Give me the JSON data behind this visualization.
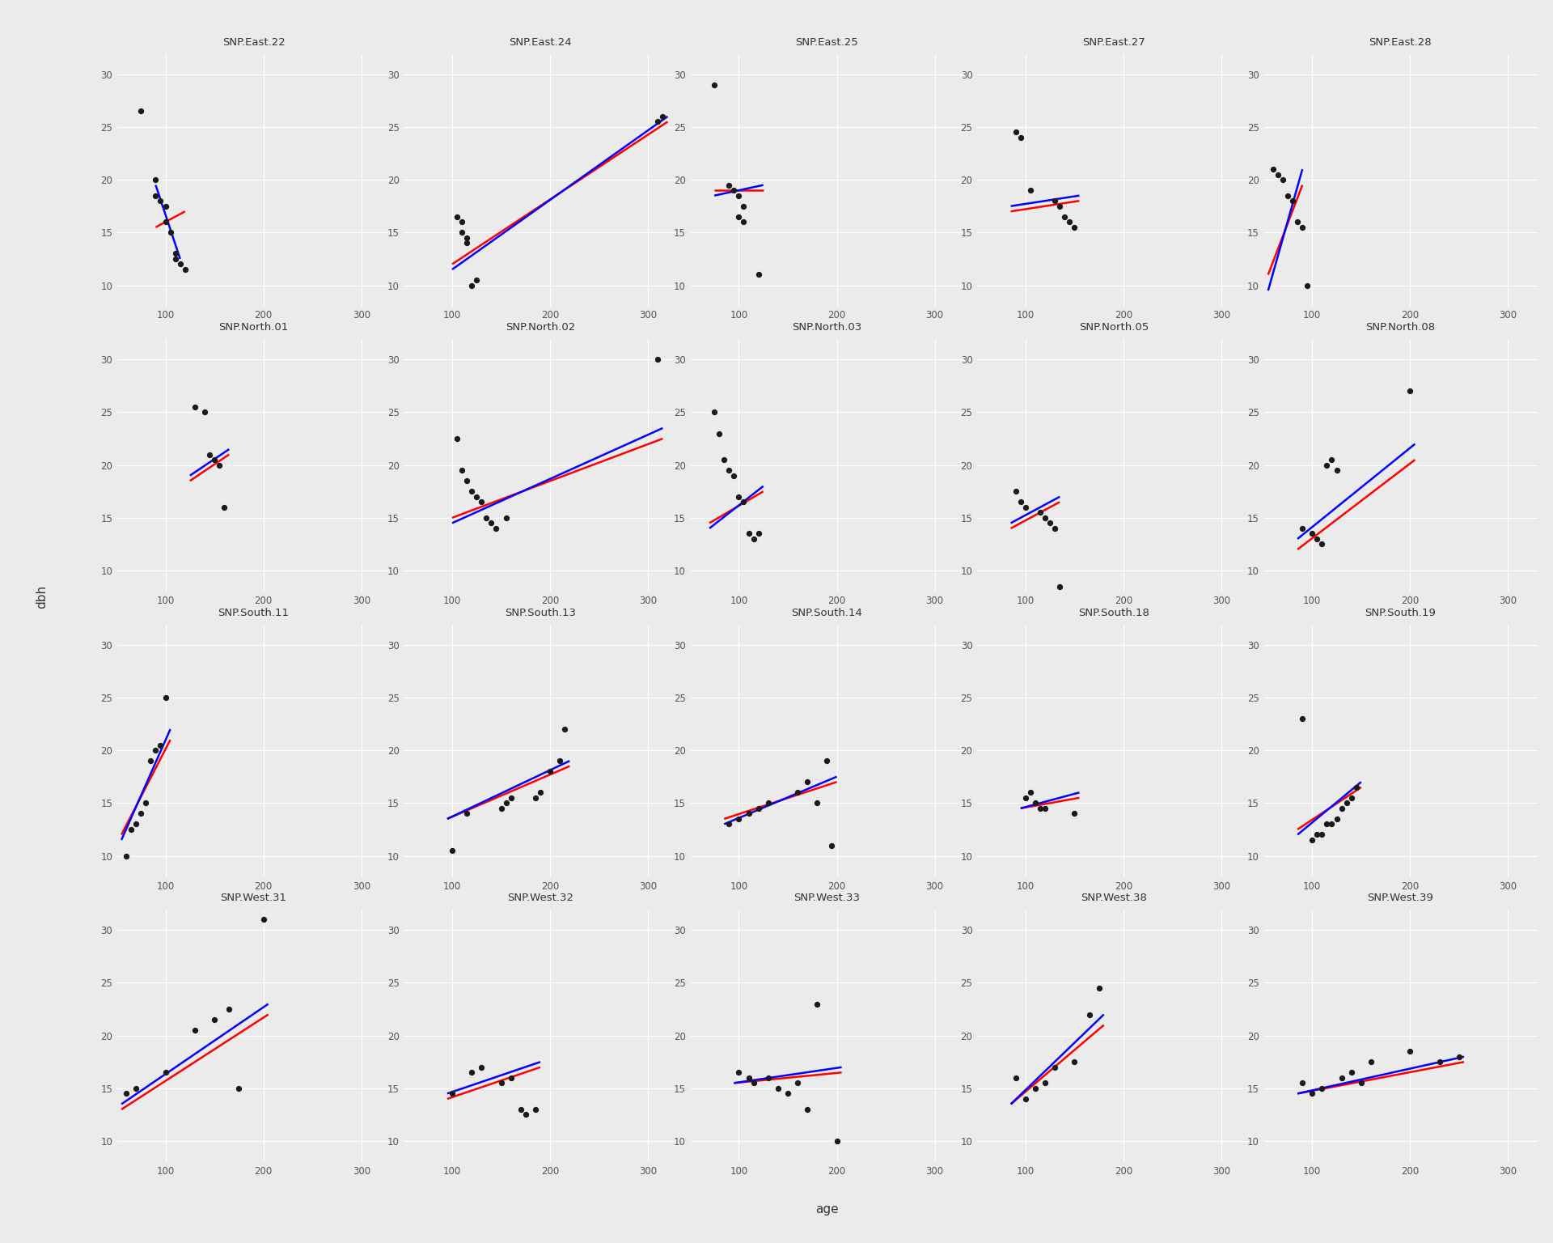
{
  "panels": [
    {
      "title": "SNP.East.22",
      "points": [
        [
          75,
          26.5
        ],
        [
          90,
          20.0
        ],
        [
          90,
          18.5
        ],
        [
          95,
          18.0
        ],
        [
          100,
          17.5
        ],
        [
          100,
          16.0
        ],
        [
          105,
          15.0
        ],
        [
          110,
          13.0
        ],
        [
          110,
          12.5
        ],
        [
          115,
          12.0
        ],
        [
          120,
          11.5
        ]
      ],
      "blue_line": [
        [
          90,
          19.5
        ],
        [
          115,
          12.5
        ]
      ],
      "red_line": [
        [
          90,
          15.5
        ],
        [
          120,
          17.0
        ]
      ]
    },
    {
      "title": "SNP.East.24",
      "points": [
        [
          105,
          16.5
        ],
        [
          110,
          16.0
        ],
        [
          110,
          15.0
        ],
        [
          115,
          14.5
        ],
        [
          115,
          14.0
        ],
        [
          120,
          10.0
        ],
        [
          125,
          10.5
        ],
        [
          310,
          25.5
        ],
        [
          315,
          26.0
        ]
      ],
      "blue_line": [
        [
          100,
          11.5
        ],
        [
          320,
          26.0
        ]
      ],
      "red_line": [
        [
          100,
          12.0
        ],
        [
          320,
          25.5
        ]
      ]
    },
    {
      "title": "SNP.East.25",
      "points": [
        [
          75,
          29.0
        ],
        [
          90,
          19.5
        ],
        [
          95,
          19.0
        ],
        [
          100,
          18.5
        ],
        [
          105,
          17.5
        ],
        [
          100,
          16.5
        ],
        [
          105,
          16.0
        ],
        [
          120,
          11.0
        ]
      ],
      "blue_line": [
        [
          75,
          18.5
        ],
        [
          125,
          19.5
        ]
      ],
      "red_line": [
        [
          75,
          19.0
        ],
        [
          125,
          19.0
        ]
      ]
    },
    {
      "title": "SNP.East.27",
      "points": [
        [
          90,
          24.5
        ],
        [
          95,
          24.0
        ],
        [
          105,
          19.0
        ],
        [
          130,
          18.0
        ],
        [
          135,
          17.5
        ],
        [
          140,
          16.5
        ],
        [
          145,
          16.0
        ],
        [
          150,
          15.5
        ]
      ],
      "blue_line": [
        [
          85,
          17.5
        ],
        [
          155,
          18.5
        ]
      ],
      "red_line": [
        [
          85,
          17.0
        ],
        [
          155,
          18.0
        ]
      ]
    },
    {
      "title": "SNP.East.28",
      "points": [
        [
          60,
          21.0
        ],
        [
          65,
          20.5
        ],
        [
          70,
          20.0
        ],
        [
          75,
          18.5
        ],
        [
          80,
          18.0
        ],
        [
          85,
          16.0
        ],
        [
          90,
          15.5
        ],
        [
          95,
          10.0
        ]
      ],
      "blue_line": [
        [
          55,
          9.5
        ],
        [
          90,
          21.0
        ]
      ],
      "red_line": [
        [
          55,
          11.0
        ],
        [
          90,
          19.5
        ]
      ]
    },
    {
      "title": "SNP.North.01",
      "points": [
        [
          130,
          25.5
        ],
        [
          140,
          25.0
        ],
        [
          145,
          21.0
        ],
        [
          150,
          20.5
        ],
        [
          155,
          20.0
        ],
        [
          160,
          16.0
        ]
      ],
      "blue_line": [
        [
          125,
          19.0
        ],
        [
          165,
          21.5
        ]
      ],
      "red_line": [
        [
          125,
          18.5
        ],
        [
          165,
          21.0
        ]
      ]
    },
    {
      "title": "SNP.North.02",
      "points": [
        [
          105,
          22.5
        ],
        [
          110,
          19.5
        ],
        [
          115,
          18.5
        ],
        [
          120,
          17.5
        ],
        [
          125,
          17.0
        ],
        [
          130,
          16.5
        ],
        [
          135,
          15.0
        ],
        [
          140,
          14.5
        ],
        [
          145,
          14.0
        ],
        [
          155,
          15.0
        ],
        [
          310,
          30.0
        ]
      ],
      "blue_line": [
        [
          100,
          14.5
        ],
        [
          315,
          23.5
        ]
      ],
      "red_line": [
        [
          100,
          15.0
        ],
        [
          315,
          22.5
        ]
      ]
    },
    {
      "title": "SNP.North.03",
      "points": [
        [
          75,
          25.0
        ],
        [
          80,
          23.0
        ],
        [
          85,
          20.5
        ],
        [
          90,
          19.5
        ],
        [
          95,
          19.0
        ],
        [
          100,
          17.0
        ],
        [
          105,
          16.5
        ],
        [
          110,
          13.5
        ],
        [
          115,
          13.0
        ],
        [
          120,
          13.5
        ]
      ],
      "blue_line": [
        [
          70,
          14.0
        ],
        [
          125,
          18.0
        ]
      ],
      "red_line": [
        [
          70,
          14.5
        ],
        [
          125,
          17.5
        ]
      ]
    },
    {
      "title": "SNP.North.05",
      "points": [
        [
          90,
          17.5
        ],
        [
          95,
          16.5
        ],
        [
          100,
          16.0
        ],
        [
          115,
          15.5
        ],
        [
          120,
          15.0
        ],
        [
          125,
          14.5
        ],
        [
          130,
          14.0
        ],
        [
          135,
          8.5
        ]
      ],
      "blue_line": [
        [
          85,
          14.5
        ],
        [
          135,
          17.0
        ]
      ],
      "red_line": [
        [
          85,
          14.0
        ],
        [
          135,
          16.5
        ]
      ]
    },
    {
      "title": "SNP.North.08",
      "points": [
        [
          90,
          14.0
        ],
        [
          100,
          13.5
        ],
        [
          105,
          13.0
        ],
        [
          110,
          12.5
        ],
        [
          115,
          20.0
        ],
        [
          120,
          20.5
        ],
        [
          125,
          19.5
        ],
        [
          200,
          27.0
        ]
      ],
      "blue_line": [
        [
          85,
          13.0
        ],
        [
          205,
          22.0
        ]
      ],
      "red_line": [
        [
          85,
          12.0
        ],
        [
          205,
          20.5
        ]
      ]
    },
    {
      "title": "SNP.South.11",
      "points": [
        [
          60,
          10.0
        ],
        [
          65,
          12.5
        ],
        [
          70,
          13.0
        ],
        [
          75,
          14.0
        ],
        [
          80,
          15.0
        ],
        [
          85,
          19.0
        ],
        [
          90,
          20.0
        ],
        [
          95,
          20.5
        ],
        [
          100,
          25.0
        ]
      ],
      "blue_line": [
        [
          55,
          11.5
        ],
        [
          105,
          22.0
        ]
      ],
      "red_line": [
        [
          55,
          12.0
        ],
        [
          105,
          21.0
        ]
      ]
    },
    {
      "title": "SNP.South.13",
      "points": [
        [
          100,
          10.5
        ],
        [
          115,
          14.0
        ],
        [
          150,
          14.5
        ],
        [
          155,
          15.0
        ],
        [
          160,
          15.5
        ],
        [
          185,
          15.5
        ],
        [
          190,
          16.0
        ],
        [
          200,
          18.0
        ],
        [
          210,
          19.0
        ],
        [
          215,
          22.0
        ]
      ],
      "blue_line": [
        [
          95,
          13.5
        ],
        [
          220,
          19.0
        ]
      ],
      "red_line": [
        [
          95,
          13.5
        ],
        [
          220,
          18.5
        ]
      ]
    },
    {
      "title": "SNP.South.14",
      "points": [
        [
          90,
          13.0
        ],
        [
          100,
          13.5
        ],
        [
          110,
          14.0
        ],
        [
          120,
          14.5
        ],
        [
          130,
          15.0
        ],
        [
          160,
          16.0
        ],
        [
          170,
          17.0
        ],
        [
          180,
          15.0
        ],
        [
          190,
          19.0
        ],
        [
          195,
          11.0
        ]
      ],
      "blue_line": [
        [
          85,
          13.0
        ],
        [
          200,
          17.5
        ]
      ],
      "red_line": [
        [
          85,
          13.5
        ],
        [
          200,
          17.0
        ]
      ]
    },
    {
      "title": "SNP.South.18",
      "points": [
        [
          100,
          15.5
        ],
        [
          105,
          16.0
        ],
        [
          110,
          15.0
        ],
        [
          115,
          14.5
        ],
        [
          120,
          14.5
        ],
        [
          150,
          14.0
        ]
      ],
      "blue_line": [
        [
          95,
          14.5
        ],
        [
          155,
          16.0
        ]
      ],
      "red_line": [
        [
          95,
          14.5
        ],
        [
          155,
          15.5
        ]
      ]
    },
    {
      "title": "SNP.South.19",
      "points": [
        [
          90,
          23.0
        ],
        [
          100,
          11.5
        ],
        [
          105,
          12.0
        ],
        [
          110,
          12.0
        ],
        [
          115,
          13.0
        ],
        [
          120,
          13.0
        ],
        [
          125,
          13.5
        ],
        [
          130,
          14.5
        ],
        [
          135,
          15.0
        ],
        [
          140,
          15.5
        ],
        [
          145,
          16.5
        ]
      ],
      "blue_line": [
        [
          85,
          12.0
        ],
        [
          150,
          17.0
        ]
      ],
      "red_line": [
        [
          85,
          12.5
        ],
        [
          150,
          16.5
        ]
      ]
    },
    {
      "title": "SNP.West.31",
      "points": [
        [
          60,
          14.5
        ],
        [
          70,
          15.0
        ],
        [
          100,
          16.5
        ],
        [
          130,
          20.5
        ],
        [
          150,
          21.5
        ],
        [
          165,
          22.5
        ],
        [
          175,
          15.0
        ],
        [
          200,
          31.0
        ]
      ],
      "blue_line": [
        [
          55,
          13.5
        ],
        [
          205,
          23.0
        ]
      ],
      "red_line": [
        [
          55,
          13.0
        ],
        [
          205,
          22.0
        ]
      ]
    },
    {
      "title": "SNP.West.32",
      "points": [
        [
          100,
          14.5
        ],
        [
          120,
          16.5
        ],
        [
          130,
          17.0
        ],
        [
          150,
          15.5
        ],
        [
          160,
          16.0
        ],
        [
          170,
          13.0
        ],
        [
          175,
          12.5
        ],
        [
          185,
          13.0
        ]
      ],
      "blue_line": [
        [
          95,
          14.5
        ],
        [
          190,
          17.5
        ]
      ],
      "red_line": [
        [
          95,
          14.0
        ],
        [
          190,
          17.0
        ]
      ]
    },
    {
      "title": "SNP.West.33",
      "points": [
        [
          100,
          16.5
        ],
        [
          110,
          16.0
        ],
        [
          115,
          15.5
        ],
        [
          130,
          16.0
        ],
        [
          140,
          15.0
        ],
        [
          150,
          14.5
        ],
        [
          160,
          15.5
        ],
        [
          170,
          13.0
        ],
        [
          180,
          23.0
        ],
        [
          200,
          10.0
        ]
      ],
      "blue_line": [
        [
          95,
          15.5
        ],
        [
          205,
          17.0
        ]
      ],
      "red_line": [
        [
          95,
          15.5
        ],
        [
          205,
          16.5
        ]
      ]
    },
    {
      "title": "SNP.West.38",
      "points": [
        [
          90,
          16.0
        ],
        [
          100,
          14.0
        ],
        [
          110,
          15.0
        ],
        [
          120,
          15.5
        ],
        [
          130,
          17.0
        ],
        [
          150,
          17.5
        ],
        [
          165,
          22.0
        ],
        [
          175,
          24.5
        ]
      ],
      "blue_line": [
        [
          85,
          13.5
        ],
        [
          180,
          22.0
        ]
      ],
      "red_line": [
        [
          85,
          13.5
        ],
        [
          180,
          21.0
        ]
      ]
    },
    {
      "title": "SNP.West.39",
      "points": [
        [
          90,
          15.5
        ],
        [
          100,
          14.5
        ],
        [
          110,
          15.0
        ],
        [
          130,
          16.0
        ],
        [
          140,
          16.5
        ],
        [
          150,
          15.5
        ],
        [
          160,
          17.5
        ],
        [
          200,
          18.5
        ],
        [
          230,
          17.5
        ],
        [
          250,
          18.0
        ]
      ],
      "blue_line": [
        [
          85,
          14.5
        ],
        [
          255,
          18.0
        ]
      ],
      "red_line": [
        [
          85,
          14.5
        ],
        [
          255,
          17.5
        ]
      ]
    }
  ],
  "nrows": 4,
  "ncols": 5,
  "xlim": [
    50,
    330
  ],
  "ylim": [
    8,
    32
  ],
  "xticks": [
    100,
    200,
    300
  ],
  "yticks": [
    10,
    15,
    20,
    25,
    30
  ],
  "xlabel": "age",
  "ylabel": "dbh",
  "blue_color": "#0000FF",
  "red_color": "#FF0000",
  "point_color": "#1a1a1a",
  "outer_bg_color": "#EBEBEB",
  "panel_bg_color": "#EBEBEB",
  "strip_bg_color": "#D9D9D9",
  "grid_color": "#FFFFFF",
  "point_size": 18,
  "line_width": 1.8,
  "strip_fontsize": 9.5,
  "axis_fontsize": 8.5,
  "label_fontsize": 11
}
